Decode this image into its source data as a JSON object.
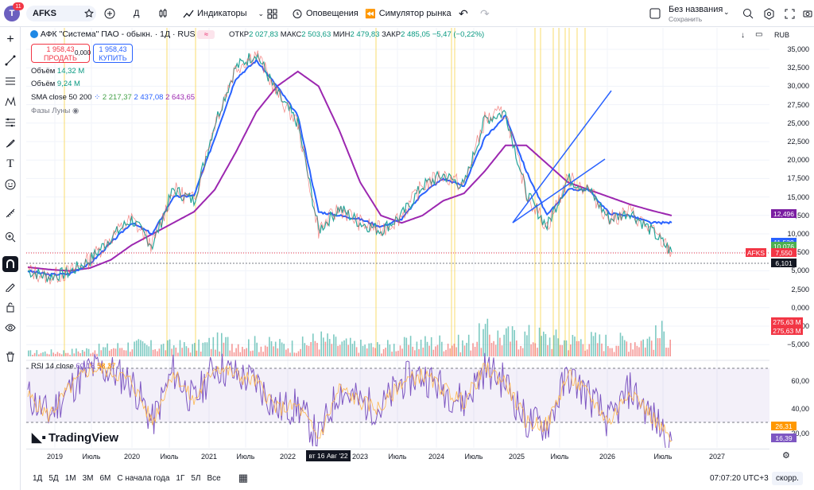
{
  "topbar": {
    "avatar_letter": "T",
    "notification_count": "11",
    "symbol": "AFKS",
    "interval": "Д",
    "indicators_label": "Индикаторы",
    "alerts_label": "Оповещения",
    "replay_label": "Симулятор рынка",
    "layout_name": "Без названия",
    "layout_status": "Сохранить"
  },
  "legend": {
    "title": "АФК \"Система\" ПАО - обыкн. · 1Д · RUS",
    "open_label": "ОТКР",
    "open": "2 027,83",
    "high_label": "МАКС",
    "high": "2 503,63",
    "low_label": "МИН",
    "low": "2 479,83",
    "close_label": "ЗАКР",
    "close": "2 485,05",
    "change": "−5,47 (−0,22%)",
    "sell_price": "1 958,43",
    "sell_label": "ПРОДАТЬ",
    "spread": "0,000",
    "buy_price": "1 958,43",
    "buy_label": "КУПИТЬ",
    "vol1_label": "Объём",
    "vol1_value": "14,32 M",
    "vol2_label": "Объём",
    "vol2_value": "9,24 M",
    "sma_label": "SMA close 50 200",
    "sma_v1": "2 217,37",
    "sma_v2": "2 437,08",
    "sma_v3": "2 643,65",
    "moon_label": "Фазы Луны",
    "rsi_label": "RSI 14 close",
    "rsi_v1": "60,18",
    "rsi_v2": "58,37",
    "watermark": "TradingView"
  },
  "currency": "RUB",
  "price_axis": {
    "ticks": [
      "35,000",
      "32,500",
      "30,000",
      "27,500",
      "25,000",
      "22,500",
      "20,000",
      "17,500",
      "15,000",
      "12,500",
      "10,000",
      "7,500",
      "5,000",
      "2,500",
      "0,000",
      "−2,500",
      "−5,000"
    ],
    "labels": [
      {
        "text": "12,496",
        "color": "#7b1fa2"
      },
      {
        "text": "11,539",
        "color": "#2962ff"
      },
      {
        "text": "10,076",
        "color": "#4caf50"
      },
      {
        "text": "7,550",
        "color": "#f23645"
      },
      {
        "text": "6,101",
        "color": "#131722"
      },
      {
        "text": "275,63 M",
        "color": "#f23645"
      },
      {
        "text": "275,63 M",
        "color": "#f23645"
      }
    ],
    "symbol_tag": "AFKS"
  },
  "rsi_axis": {
    "ticks": [
      "60,00",
      "40,00",
      "20,00"
    ],
    "labels": [
      {
        "text": "26,31",
        "color": "#ff9800"
      },
      {
        "text": "16,39",
        "color": "#7e57c2"
      }
    ]
  },
  "time_axis": {
    "labels": [
      "2019",
      "Июль",
      "2020",
      "Июль",
      "2021",
      "Июль",
      "2022",
      "2023",
      "Июль",
      "2024",
      "Июль",
      "2025",
      "Июль",
      "2026",
      "Июль",
      "2027"
    ],
    "cursor_label": "вт 16 Авг '22"
  },
  "bottombar": {
    "ranges": [
      "1Д",
      "5Д",
      "1М",
      "3М",
      "6М",
      "С начала года",
      "1Г",
      "5Л",
      "Все"
    ],
    "clock": "07:07:20 UTC+3",
    "scale_label": "скорр."
  },
  "chart_data": {
    "type": "line",
    "price_series_name": "AFKS",
    "x": [
      "2018-10",
      "2019-01",
      "2019-04",
      "2019-07",
      "2019-10",
      "2020-01",
      "2020-04",
      "2020-07",
      "2020-10",
      "2021-01",
      "2021-04",
      "2021-07",
      "2021-10",
      "2022-01",
      "2022-04",
      "2022-07",
      "2022-10",
      "2023-01",
      "2023-04",
      "2023-07",
      "2023-10",
      "2024-01",
      "2024-04",
      "2024-07",
      "2024-10",
      "2025-01",
      "2025-04",
      "2025-07",
      "2025-10",
      "2026-01",
      "2026-04",
      "2026-07"
    ],
    "price": [
      5.0,
      4.2,
      4.8,
      6.5,
      9.5,
      12.0,
      8.5,
      16.0,
      14.5,
      25.0,
      32.5,
      34.5,
      29.0,
      25.0,
      10.5,
      13.5,
      11.5,
      10.5,
      12.5,
      16.5,
      18.0,
      16.5,
      25.5,
      26.5,
      15.5,
      11.0,
      17.5,
      16.0,
      12.0,
      13.0,
      10.5,
      7.55
    ],
    "sma50": [
      5.0,
      4.5,
      4.6,
      6.0,
      8.8,
      11.5,
      10.0,
      15.0,
      15.2,
      23.0,
      31.0,
      33.5,
      30.0,
      26.0,
      13.0,
      12.5,
      12.0,
      11.0,
      12.0,
      15.5,
      17.5,
      16.5,
      23.0,
      26.0,
      18.5,
      12.5,
      16.0,
      16.0,
      12.8,
      12.5,
      11.5,
      11.54
    ],
    "sma200": [
      5.5,
      5.2,
      5.0,
      5.4,
      6.5,
      8.5,
      10.0,
      11.5,
      13.0,
      16.0,
      21.0,
      26.5,
      30.0,
      32.0,
      30.0,
      24.0,
      17.0,
      12.5,
      11.5,
      12.5,
      14.5,
      15.5,
      18.5,
      22.0,
      22.0,
      19.5,
      17.0,
      16.0,
      15.0,
      14.0,
      13.2,
      12.5
    ],
    "volume": [
      40,
      45,
      50,
      70,
      90,
      120,
      100,
      110,
      95,
      150,
      140,
      130,
      120,
      110,
      180,
      130,
      110,
      100,
      120,
      140,
      150,
      130,
      240,
      200,
      210,
      190,
      160,
      170,
      150,
      160,
      180,
      276
    ],
    "rsi": [
      50,
      35,
      55,
      70,
      68,
      60,
      30,
      68,
      45,
      72,
      65,
      60,
      40,
      42,
      18,
      55,
      45,
      40,
      60,
      65,
      55,
      45,
      70,
      60,
      30,
      28,
      65,
      50,
      30,
      55,
      35,
      16.39
    ],
    "annotations": "two drawn trend lines (2024–2025)",
    "ylabel": "RUB",
    "ylim": [
      -5.0,
      36.0
    ],
    "rsi_ylim": [
      16,
      75
    ]
  }
}
